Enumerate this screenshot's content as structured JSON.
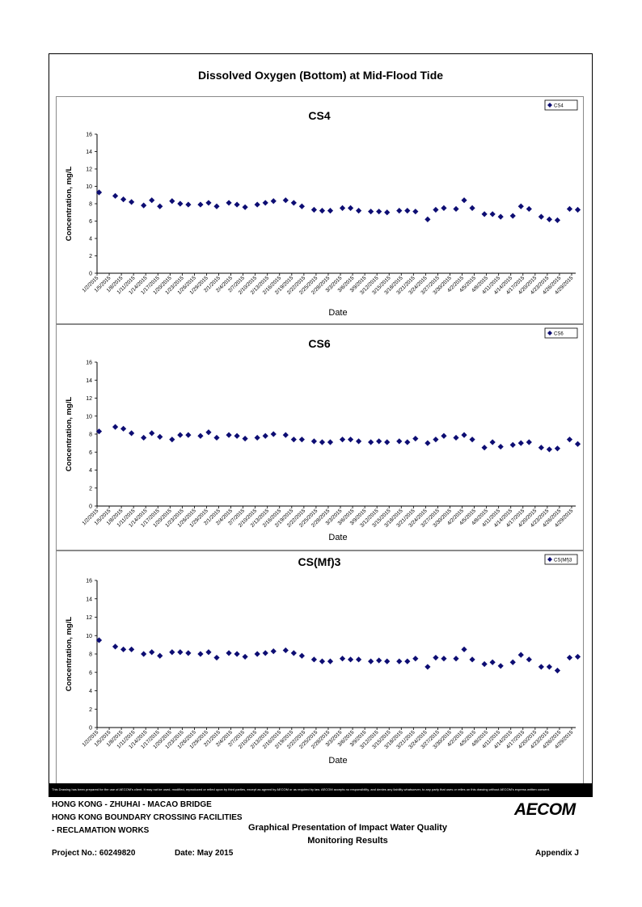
{
  "page_title": "Dissolved Oxygen (Bottom) at Mid-Flood Tide",
  "disclaimer": "This Drawing has been prepared for the use of AECOM's client. It may not be used, modified, reproduced or relied upon by third parties, except as agreed by AECOM or as required by law. AECOM accepts no responsibility, and denies any liability whatsoever, to any party that uses or relies on this drawing without AECOM's express written consent.",
  "title_block": {
    "project_line1": "HONG KONG - ZHUHAI - MACAO BRIDGE",
    "project_line2": "HONG KONG BOUNDARY CROSSING FACILITIES",
    "project_line3": "- RECLAMATION WORKS",
    "drawing_title_line1": "Graphical Presentation of Impact Water Quality",
    "drawing_title_line2": "Monitoring Results",
    "project_no": "Project No.: 60249820",
    "date": "Date: May 2015",
    "appendix": "Appendix J",
    "logo": "AECOM"
  },
  "colors": {
    "marker": "#0d0d73",
    "axis": "#000000",
    "panel_border": "#8a8a8a"
  },
  "chart_data": [
    {
      "type": "scatter",
      "title": "CS4",
      "xlabel": "Date",
      "ylabel": "Concentration, mg/L",
      "ylim": [
        0,
        16
      ],
      "yticks": [
        0,
        2,
        4,
        6,
        8,
        10,
        12,
        14,
        16
      ],
      "grid": false,
      "legend": "top-right",
      "x_tick_labels": [
        "1/2/2015",
        "1/5/2015",
        "1/8/2015",
        "1/11/2015",
        "1/14/2015",
        "1/17/2015",
        "1/20/2015",
        "1/23/2015",
        "1/26/2015",
        "1/29/2015",
        "2/1/2015",
        "2/4/2015",
        "2/7/2015",
        "2/10/2015",
        "2/13/2015",
        "2/16/2015",
        "2/19/2015",
        "2/22/2015",
        "2/25/2015",
        "2/28/2015",
        "3/3/2015",
        "3/6/2015",
        "3/9/2015",
        "3/12/2015",
        "3/15/2015",
        "3/18/2015",
        "3/21/2015",
        "3/24/2015",
        "3/27/2015",
        "3/30/2015",
        "4/2/2015",
        "4/5/2015",
        "4/8/2015",
        "4/11/2015",
        "4/14/2015",
        "4/17/2015",
        "4/20/2015",
        "4/23/2015",
        "4/26/2015",
        "4/29/2015"
      ],
      "series": [
        {
          "name": "CS4",
          "points": [
            {
              "x": "2015-01-02",
              "y": 9.3
            },
            {
              "x": "2015-01-06",
              "y": 8.9
            },
            {
              "x": "2015-01-08",
              "y": 8.5
            },
            {
              "x": "2015-01-10",
              "y": 8.2
            },
            {
              "x": "2015-01-13",
              "y": 7.8
            },
            {
              "x": "2015-01-15",
              "y": 8.4
            },
            {
              "x": "2015-01-17",
              "y": 7.7
            },
            {
              "x": "2015-01-20",
              "y": 8.3
            },
            {
              "x": "2015-01-22",
              "y": 8.0
            },
            {
              "x": "2015-01-24",
              "y": 7.9
            },
            {
              "x": "2015-01-27",
              "y": 7.9
            },
            {
              "x": "2015-01-29",
              "y": 8.1
            },
            {
              "x": "2015-01-31",
              "y": 7.7
            },
            {
              "x": "2015-02-03",
              "y": 8.1
            },
            {
              "x": "2015-02-05",
              "y": 7.9
            },
            {
              "x": "2015-02-07",
              "y": 7.6
            },
            {
              "x": "2015-02-10",
              "y": 7.9
            },
            {
              "x": "2015-02-12",
              "y": 8.1
            },
            {
              "x": "2015-02-14",
              "y": 8.3
            },
            {
              "x": "2015-02-17",
              "y": 8.4
            },
            {
              "x": "2015-02-19",
              "y": 8.1
            },
            {
              "x": "2015-02-21",
              "y": 7.7
            },
            {
              "x": "2015-02-24",
              "y": 7.3
            },
            {
              "x": "2015-02-26",
              "y": 7.2
            },
            {
              "x": "2015-02-28",
              "y": 7.2
            },
            {
              "x": "2015-03-03",
              "y": 7.5
            },
            {
              "x": "2015-03-05",
              "y": 7.5
            },
            {
              "x": "2015-03-07",
              "y": 7.2
            },
            {
              "x": "2015-03-10",
              "y": 7.1
            },
            {
              "x": "2015-03-12",
              "y": 7.1
            },
            {
              "x": "2015-03-14",
              "y": 7.0
            },
            {
              "x": "2015-03-17",
              "y": 7.2
            },
            {
              "x": "2015-03-19",
              "y": 7.2
            },
            {
              "x": "2015-03-21",
              "y": 7.1
            },
            {
              "x": "2015-03-24",
              "y": 6.2
            },
            {
              "x": "2015-03-26",
              "y": 7.3
            },
            {
              "x": "2015-03-28",
              "y": 7.5
            },
            {
              "x": "2015-03-31",
              "y": 7.4
            },
            {
              "x": "2015-04-02",
              "y": 8.4
            },
            {
              "x": "2015-04-04",
              "y": 7.5
            },
            {
              "x": "2015-04-07",
              "y": 6.8
            },
            {
              "x": "2015-04-09",
              "y": 6.8
            },
            {
              "x": "2015-04-11",
              "y": 6.5
            },
            {
              "x": "2015-04-14",
              "y": 6.6
            },
            {
              "x": "2015-04-16",
              "y": 7.7
            },
            {
              "x": "2015-04-18",
              "y": 7.4
            },
            {
              "x": "2015-04-21",
              "y": 6.5
            },
            {
              "x": "2015-04-23",
              "y": 6.2
            },
            {
              "x": "2015-04-25",
              "y": 6.1
            },
            {
              "x": "2015-04-28",
              "y": 7.4
            },
            {
              "x": "2015-04-30",
              "y": 7.3
            }
          ]
        }
      ]
    },
    {
      "type": "scatter",
      "title": "CS6",
      "xlabel": "Date",
      "ylabel": "Concentration, mg/L",
      "ylim": [
        0,
        16
      ],
      "yticks": [
        0,
        2,
        4,
        6,
        8,
        10,
        12,
        14,
        16
      ],
      "grid": false,
      "legend": "top-right",
      "x_tick_labels": [
        "1/2/2015",
        "1/5/2015",
        "1/8/2015",
        "1/11/2015",
        "1/14/2015",
        "1/17/2015",
        "1/20/2015",
        "1/23/2015",
        "1/26/2015",
        "1/29/2015",
        "2/1/2015",
        "2/4/2015",
        "2/7/2015",
        "2/10/2015",
        "2/13/2015",
        "2/16/2015",
        "2/19/2015",
        "2/22/2015",
        "2/25/2015",
        "2/28/2015",
        "3/3/2015",
        "3/6/2015",
        "3/9/2015",
        "3/12/2015",
        "3/15/2015",
        "3/18/2015",
        "3/21/2015",
        "3/24/2015",
        "3/27/2015",
        "3/30/2015",
        "4/2/2015",
        "4/5/2015",
        "4/8/2015",
        "4/11/2015",
        "4/14/2015",
        "4/17/2015",
        "4/20/2015",
        "4/23/2015",
        "4/26/2015",
        "4/29/2015"
      ],
      "series": [
        {
          "name": "CS6",
          "points": [
            {
              "x": "2015-01-02",
              "y": 8.3
            },
            {
              "x": "2015-01-06",
              "y": 8.8
            },
            {
              "x": "2015-01-08",
              "y": 8.6
            },
            {
              "x": "2015-01-10",
              "y": 8.1
            },
            {
              "x": "2015-01-13",
              "y": 7.6
            },
            {
              "x": "2015-01-15",
              "y": 8.1
            },
            {
              "x": "2015-01-17",
              "y": 7.7
            },
            {
              "x": "2015-01-20",
              "y": 7.4
            },
            {
              "x": "2015-01-22",
              "y": 7.9
            },
            {
              "x": "2015-01-24",
              "y": 7.9
            },
            {
              "x": "2015-01-27",
              "y": 7.8
            },
            {
              "x": "2015-01-29",
              "y": 8.2
            },
            {
              "x": "2015-01-31",
              "y": 7.6
            },
            {
              "x": "2015-02-03",
              "y": 7.9
            },
            {
              "x": "2015-02-05",
              "y": 7.8
            },
            {
              "x": "2015-02-07",
              "y": 7.5
            },
            {
              "x": "2015-02-10",
              "y": 7.6
            },
            {
              "x": "2015-02-12",
              "y": 7.8
            },
            {
              "x": "2015-02-14",
              "y": 8.0
            },
            {
              "x": "2015-02-17",
              "y": 7.9
            },
            {
              "x": "2015-02-19",
              "y": 7.4
            },
            {
              "x": "2015-02-21",
              "y": 7.4
            },
            {
              "x": "2015-02-24",
              "y": 7.2
            },
            {
              "x": "2015-02-26",
              "y": 7.1
            },
            {
              "x": "2015-02-28",
              "y": 7.1
            },
            {
              "x": "2015-03-03",
              "y": 7.4
            },
            {
              "x": "2015-03-05",
              "y": 7.4
            },
            {
              "x": "2015-03-07",
              "y": 7.2
            },
            {
              "x": "2015-03-10",
              "y": 7.1
            },
            {
              "x": "2015-03-12",
              "y": 7.2
            },
            {
              "x": "2015-03-14",
              "y": 7.1
            },
            {
              "x": "2015-03-17",
              "y": 7.2
            },
            {
              "x": "2015-03-19",
              "y": 7.1
            },
            {
              "x": "2015-03-21",
              "y": 7.5
            },
            {
              "x": "2015-03-24",
              "y": 7.0
            },
            {
              "x": "2015-03-26",
              "y": 7.4
            },
            {
              "x": "2015-03-28",
              "y": 7.8
            },
            {
              "x": "2015-03-31",
              "y": 7.6
            },
            {
              "x": "2015-04-02",
              "y": 7.9
            },
            {
              "x": "2015-04-04",
              "y": 7.4
            },
            {
              "x": "2015-04-07",
              "y": 6.5
            },
            {
              "x": "2015-04-09",
              "y": 7.1
            },
            {
              "x": "2015-04-11",
              "y": 6.6
            },
            {
              "x": "2015-04-14",
              "y": 6.8
            },
            {
              "x": "2015-04-16",
              "y": 7.0
            },
            {
              "x": "2015-04-18",
              "y": 7.1
            },
            {
              "x": "2015-04-21",
              "y": 6.5
            },
            {
              "x": "2015-04-23",
              "y": 6.3
            },
            {
              "x": "2015-04-25",
              "y": 6.4
            },
            {
              "x": "2015-04-28",
              "y": 7.4
            },
            {
              "x": "2015-04-30",
              "y": 6.9
            }
          ]
        }
      ]
    },
    {
      "type": "scatter",
      "title": "CS(Mf)3",
      "xlabel": "Date",
      "ylabel": "Concentration, mg/L",
      "ylim": [
        0,
        16
      ],
      "yticks": [
        0,
        2,
        4,
        6,
        8,
        10,
        12,
        14,
        16
      ],
      "grid": false,
      "legend": "top-right",
      "x_tick_labels": [
        "1/2/2015",
        "1/5/2015",
        "1/8/2015",
        "1/11/2015",
        "1/14/2015",
        "1/17/2015",
        "1/20/2015",
        "1/23/2015",
        "1/26/2015",
        "1/29/2015",
        "2/1/2015",
        "2/4/2015",
        "2/7/2015",
        "2/10/2015",
        "2/13/2015",
        "2/16/2015",
        "2/19/2015",
        "2/22/2015",
        "2/25/2015",
        "2/28/2015",
        "3/3/2015",
        "3/6/2015",
        "3/9/2015",
        "3/12/2015",
        "3/15/2015",
        "3/18/2015",
        "3/21/2015",
        "3/24/2015",
        "3/27/2015",
        "3/30/2015",
        "4/2/2015",
        "4/5/2015",
        "4/8/2015",
        "4/11/2015",
        "4/14/2015",
        "4/17/2015",
        "4/20/2015",
        "4/23/2015",
        "4/26/2015",
        "4/29/2015"
      ],
      "series": [
        {
          "name": "CS(Mf)3",
          "points": [
            {
              "x": "2015-01-02",
              "y": 9.5
            },
            {
              "x": "2015-01-06",
              "y": 8.8
            },
            {
              "x": "2015-01-08",
              "y": 8.5
            },
            {
              "x": "2015-01-10",
              "y": 8.5
            },
            {
              "x": "2015-01-13",
              "y": 8.0
            },
            {
              "x": "2015-01-15",
              "y": 8.2
            },
            {
              "x": "2015-01-17",
              "y": 7.8
            },
            {
              "x": "2015-01-20",
              "y": 8.2
            },
            {
              "x": "2015-01-22",
              "y": 8.2
            },
            {
              "x": "2015-01-24",
              "y": 8.1
            },
            {
              "x": "2015-01-27",
              "y": 8.0
            },
            {
              "x": "2015-01-29",
              "y": 8.2
            },
            {
              "x": "2015-01-31",
              "y": 7.6
            },
            {
              "x": "2015-02-03",
              "y": 8.1
            },
            {
              "x": "2015-02-05",
              "y": 8.0
            },
            {
              "x": "2015-02-07",
              "y": 7.7
            },
            {
              "x": "2015-02-10",
              "y": 8.0
            },
            {
              "x": "2015-02-12",
              "y": 8.1
            },
            {
              "x": "2015-02-14",
              "y": 8.3
            },
            {
              "x": "2015-02-17",
              "y": 8.4
            },
            {
              "x": "2015-02-19",
              "y": 8.1
            },
            {
              "x": "2015-02-21",
              "y": 7.8
            },
            {
              "x": "2015-02-24",
              "y": 7.4
            },
            {
              "x": "2015-02-26",
              "y": 7.2
            },
            {
              "x": "2015-02-28",
              "y": 7.2
            },
            {
              "x": "2015-03-03",
              "y": 7.5
            },
            {
              "x": "2015-03-05",
              "y": 7.4
            },
            {
              "x": "2015-03-07",
              "y": 7.4
            },
            {
              "x": "2015-03-10",
              "y": 7.2
            },
            {
              "x": "2015-03-12",
              "y": 7.3
            },
            {
              "x": "2015-03-14",
              "y": 7.2
            },
            {
              "x": "2015-03-17",
              "y": 7.2
            },
            {
              "x": "2015-03-19",
              "y": 7.2
            },
            {
              "x": "2015-03-21",
              "y": 7.5
            },
            {
              "x": "2015-03-24",
              "y": 6.6
            },
            {
              "x": "2015-03-26",
              "y": 7.6
            },
            {
              "x": "2015-03-28",
              "y": 7.5
            },
            {
              "x": "2015-03-31",
              "y": 7.5
            },
            {
              "x": "2015-04-02",
              "y": 8.5
            },
            {
              "x": "2015-04-04",
              "y": 7.4
            },
            {
              "x": "2015-04-07",
              "y": 6.9
            },
            {
              "x": "2015-04-09",
              "y": 7.1
            },
            {
              "x": "2015-04-11",
              "y": 6.7
            },
            {
              "x": "2015-04-14",
              "y": 7.1
            },
            {
              "x": "2015-04-16",
              "y": 7.9
            },
            {
              "x": "2015-04-18",
              "y": 7.4
            },
            {
              "x": "2015-04-21",
              "y": 6.6
            },
            {
              "x": "2015-04-23",
              "y": 6.6
            },
            {
              "x": "2015-04-25",
              "y": 6.2
            },
            {
              "x": "2015-04-28",
              "y": 7.6
            },
            {
              "x": "2015-04-30",
              "y": 7.7
            }
          ]
        }
      ]
    }
  ]
}
